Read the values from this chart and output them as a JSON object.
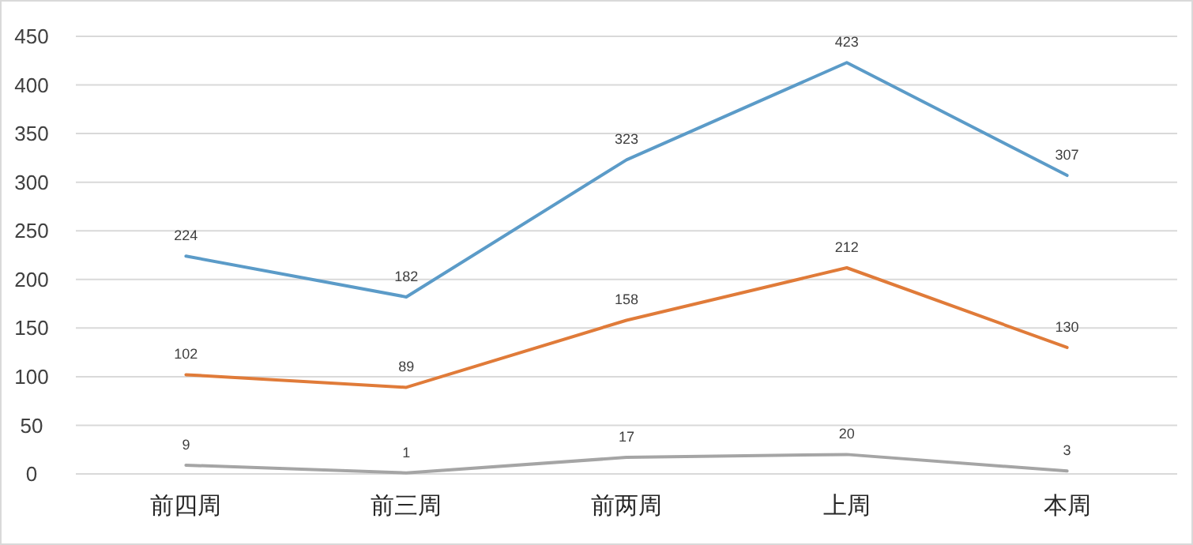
{
  "chart_data": {
    "type": "line",
    "categories": [
      "前四周",
      "前三周",
      "前两周",
      "上周",
      "本周"
    ],
    "series": [
      {
        "color": "#5b9bc8",
        "values": [
          224,
          182,
          323,
          423,
          307
        ]
      },
      {
        "color": "#e07b39",
        "values": [
          102,
          89,
          158,
          212,
          130
        ]
      },
      {
        "color": "#a5a5a5",
        "values": [
          9,
          1,
          17,
          20,
          3
        ]
      }
    ],
    "ylim": [
      0,
      450
    ],
    "yticks": [
      0,
      50,
      100,
      150,
      200,
      250,
      300,
      350,
      400,
      450
    ],
    "grid": "y",
    "data_labels": true,
    "marker": "none",
    "line_style": "solid"
  }
}
